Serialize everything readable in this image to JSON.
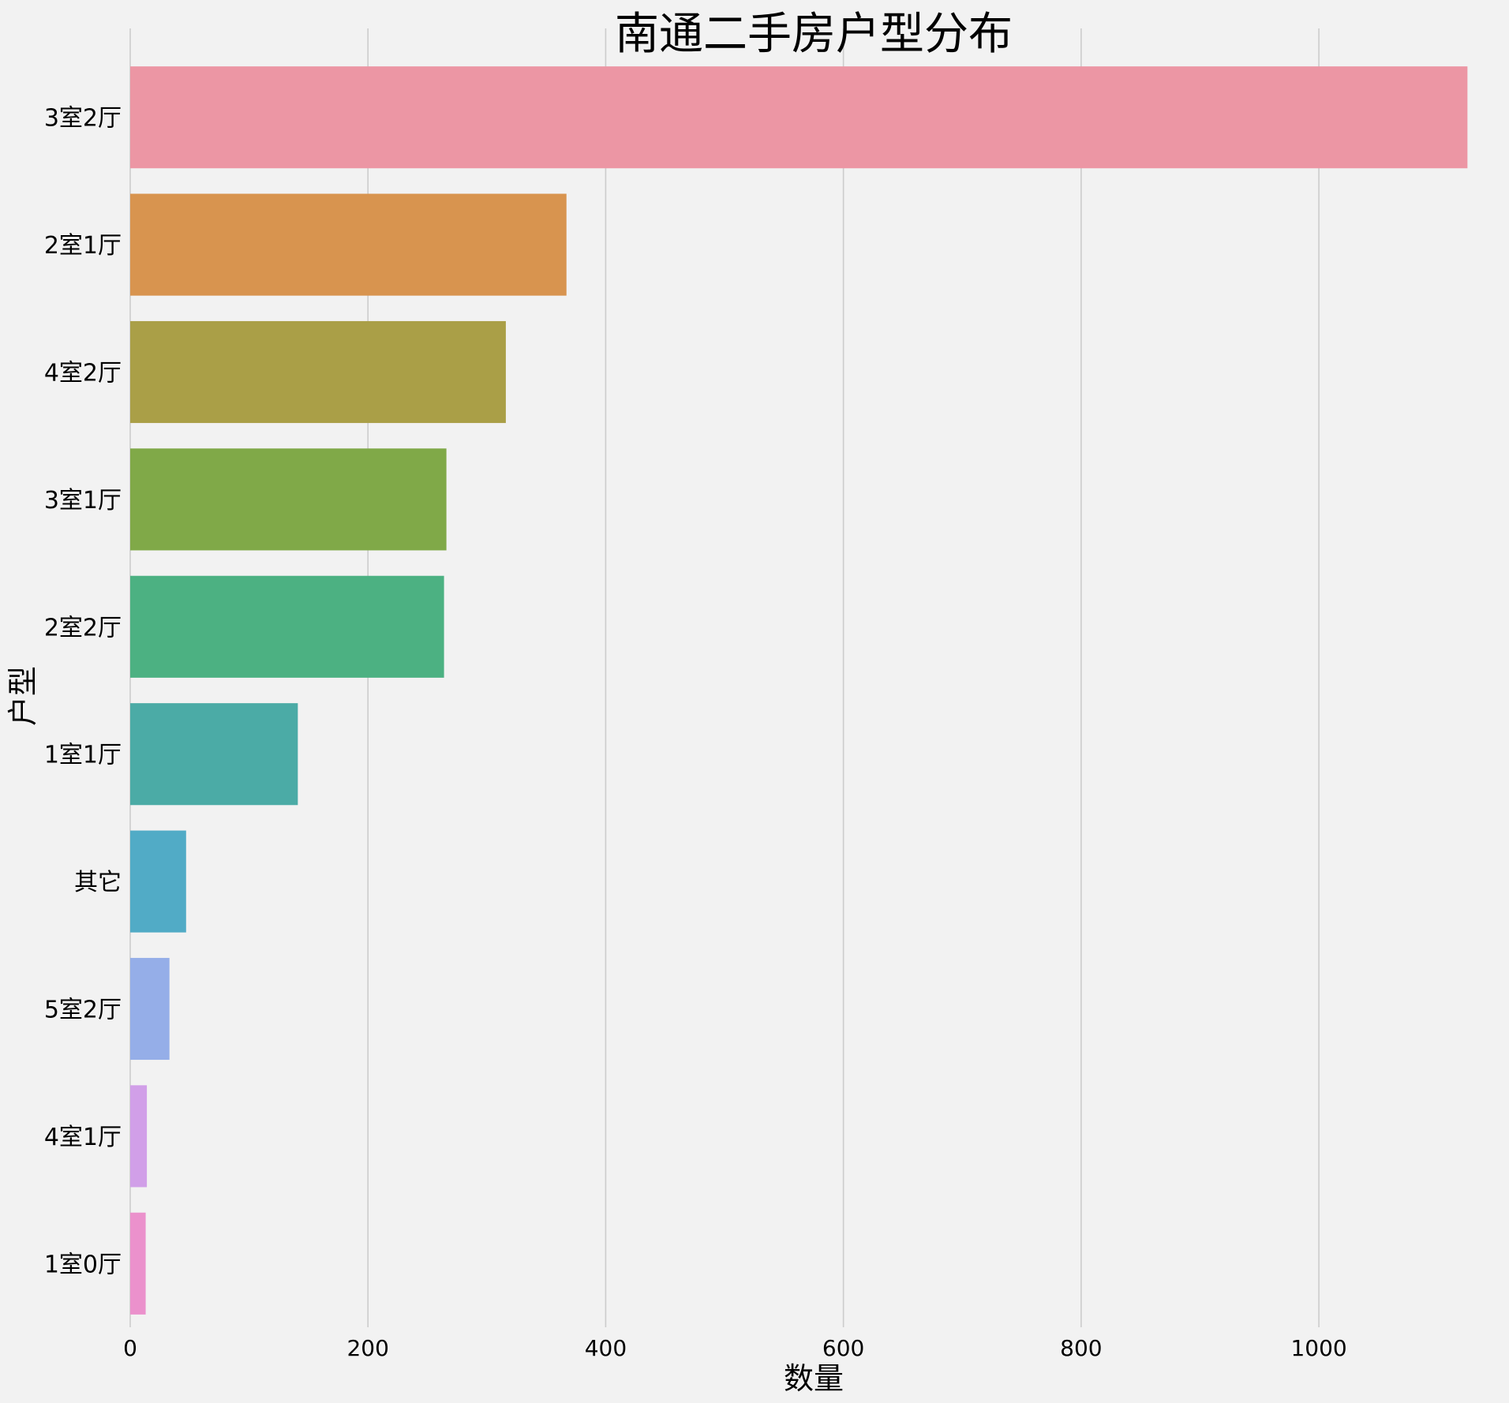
{
  "chart_data": {
    "type": "bar",
    "orientation": "horizontal",
    "title": "南通二手房户型分布",
    "xlabel": "数量",
    "ylabel": "户型",
    "categories": [
      "3室2厅",
      "2室1厅",
      "4室2厅",
      "3室1厅",
      "2室2厅",
      "1室1厅",
      "其它",
      "5室2厅",
      "4室1厅",
      "1室0厅"
    ],
    "values": [
      1125,
      367,
      316,
      266,
      264,
      141,
      47,
      33,
      14,
      13
    ],
    "xlim": [
      0,
      1150
    ],
    "xticks": [
      0,
      200,
      400,
      600,
      800,
      1000
    ],
    "grid": "vertical",
    "legend": "none",
    "colors": [
      "#ec96a4",
      "#d8944f",
      "#aa9f47",
      "#80a948",
      "#4cb182",
      "#4baba6",
      "#51abc6",
      "#95aee8",
      "#d19fe8",
      "#eb91cc"
    ],
    "background": "#f2f2f2",
    "grid_color": "#cccccc"
  }
}
